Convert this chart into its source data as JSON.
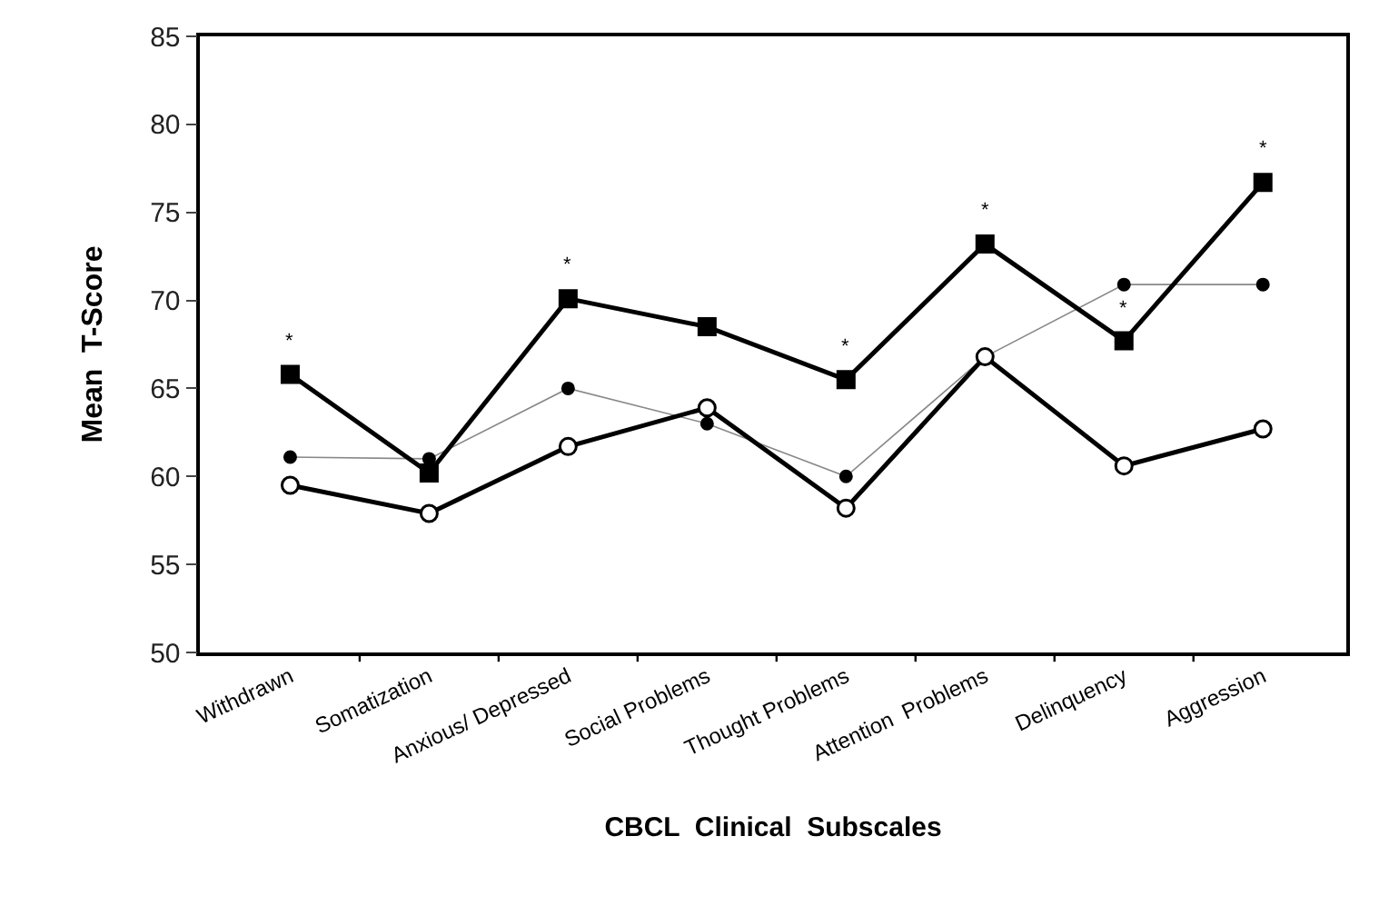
{
  "chart_data": {
    "type": "line",
    "xlabel": "CBCL  Clinical  Subscales",
    "ylabel": "Mean  T-Score",
    "categories": [
      "Withdrawn",
      "Somatization",
      "Anxious/ Depressed",
      "Social Problems",
      "Thought Problems",
      "Attention  Problems",
      "Delinquency",
      "Aggression"
    ],
    "series": [
      {
        "color": "#000000",
        "marker": "square",
        "values": [
          65.8,
          60.2,
          70.1,
          68.5,
          65.5,
          73.2,
          67.7,
          76.7
        ]
      },
      {
        "color": "#000000",
        "marker": "circle",
        "values": [
          59.5,
          57.9,
          61.7,
          63.9,
          58.2,
          66.8,
          60.6,
          62.7
        ]
      },
      {
        "color": "#000000",
        "marker": "circle",
        "values": [
          61.1,
          61.0,
          65.0,
          63.0,
          60.0,
          66.8,
          70.9,
          70.9
        ]
      }
    ],
    "annotations": [
      {
        "text": "*",
        "x": "Withdrawn",
        "y": 65.8
      },
      {
        "text": "*",
        "x": "Anxious/ Depressed",
        "y": 70.1
      },
      {
        "text": "*",
        "x": "Thought Problems",
        "y": 65.5
      },
      {
        "text": "*",
        "x": "Attention  Problems",
        "y": 73.2
      },
      {
        "text": "*",
        "x": "Delinquency",
        "y": 67.7
      },
      {
        "text": "*",
        "x": "Aggression",
        "y": 76.7
      }
    ],
    "ylim": [
      50,
      85
    ],
    "yticks": [
      50,
      55,
      60,
      65,
      70,
      75,
      80,
      85
    ],
    "grid": false,
    "line_style": "solid"
  }
}
